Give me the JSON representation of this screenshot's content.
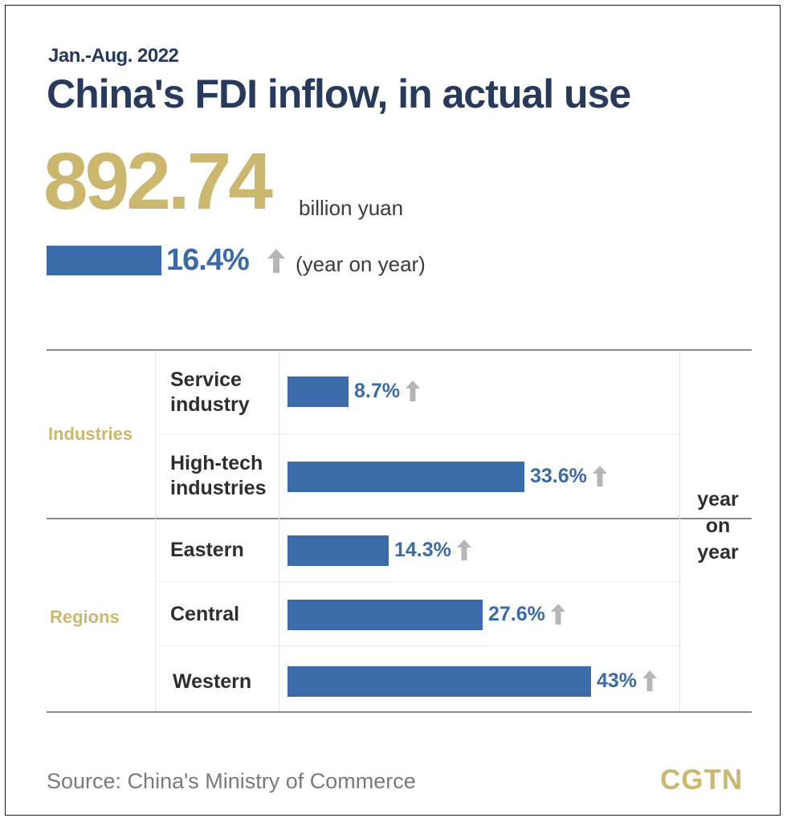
{
  "header": {
    "period": "Jan.-Aug. 2022",
    "title": "China's FDI inflow, in actual use"
  },
  "headline": {
    "value": "892.74",
    "unit": "billion yuan",
    "growth_label": "16.4%",
    "growth_note": "(year on year)"
  },
  "table": {
    "yoy_label": [
      "year",
      "on",
      "year"
    ],
    "groups": [
      {
        "label": "Industries",
        "rows": [
          {
            "label": [
              "Service",
              "industry"
            ],
            "value_label": "8.7%"
          },
          {
            "label": [
              "High-tech",
              "industries"
            ],
            "value_label": "33.6%"
          }
        ]
      },
      {
        "label": "Regions",
        "rows": [
          {
            "label": [
              "Eastern"
            ],
            "value_label": "14.3%"
          },
          {
            "label": [
              "Central"
            ],
            "value_label": "27.6%"
          },
          {
            "label": [
              "Western"
            ],
            "value_label": "43%"
          }
        ]
      }
    ]
  },
  "footer": {
    "source": "Source: China's Ministry of Commerce",
    "brand": "CGTN"
  },
  "colors": {
    "navy": "#283a5b",
    "gold": "#cbb76d",
    "bar": "#3b6aa9",
    "arrow": "#b5b5b5"
  },
  "icons": {
    "up_arrow": "up-arrow-icon"
  },
  "chart_data": {
    "type": "bar",
    "orientation": "horizontal",
    "unit": "%",
    "headline": {
      "value": 892.74,
      "unit": "billion yuan",
      "growth_pct": 16.4
    },
    "categories": [
      "Service industry",
      "High-tech industries",
      "Eastern",
      "Central",
      "Western"
    ],
    "groups": [
      "Industries",
      "Industries",
      "Regions",
      "Regions",
      "Regions"
    ],
    "values": [
      8.7,
      33.6,
      14.3,
      27.6,
      43
    ],
    "xlim": [
      0,
      43
    ],
    "grid": false,
    "legend": "none"
  }
}
